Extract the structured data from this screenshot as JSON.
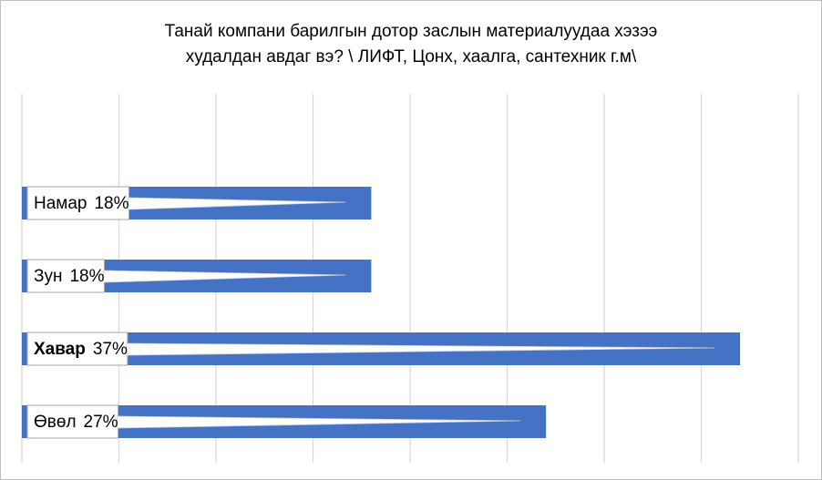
{
  "chart_data": {
    "type": "bar",
    "orientation": "horizontal",
    "title": [
      "Танай компани барилгын дотор заслын материалуудаа хэзээ",
      "худалдан авдаг вэ? \\ ЛИФТ, Цонх, хаалга, сантехник г.м\\"
    ],
    "categories": [
      "Намар",
      "Зун",
      "Хавар",
      "Өвөл"
    ],
    "values": [
      18,
      18,
      37,
      27
    ],
    "value_labels": [
      "18%",
      "18%",
      "37%",
      "27%"
    ],
    "color": "#4472c4",
    "xlim": [
      0,
      40
    ],
    "xticks": [
      0,
      5,
      10,
      15,
      20,
      25,
      30,
      35,
      40
    ],
    "grid": true
  }
}
